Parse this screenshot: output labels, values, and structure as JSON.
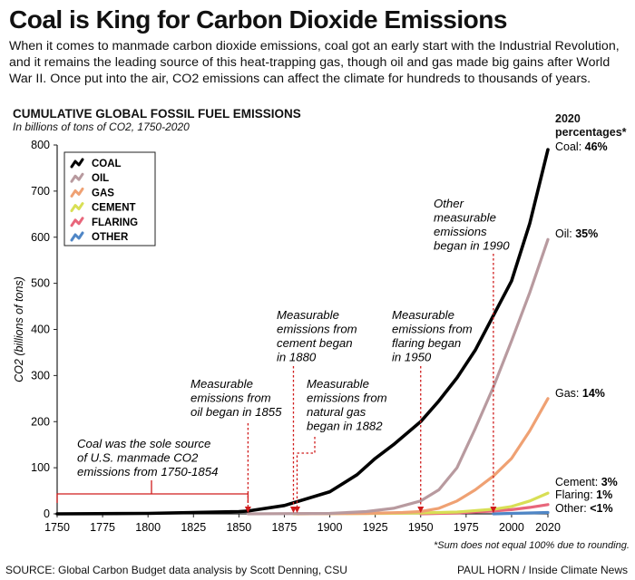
{
  "header": {
    "title": "Coal is King for Carbon Dioxide Emissions",
    "intro": "When it comes to manmade carbon dioxide emissions, coal got an early start with the Industrial Revolution, and it remains the leading source of this heat-trapping gas, though oil and gas made big gains after World War II.  Once put into the air, CO2 emissions can affect the climate for hundreds to thousands of years."
  },
  "chart_data": {
    "type": "line",
    "title": "CUMULATIVE GLOBAL FOSSIL FUEL EMISSIONS",
    "subtitle": "In billions of tons of CO2, 1750-2020",
    "ylabel": "CO2 (billions of tons)",
    "xlim": [
      1750,
      2020
    ],
    "ylim": [
      0,
      800
    ],
    "x_ticks": [
      1750,
      1775,
      1800,
      1825,
      1850,
      1875,
      1900,
      1925,
      1950,
      1975,
      2000,
      2020
    ],
    "y_ticks": [
      0,
      100,
      200,
      300,
      400,
      500,
      600,
      700,
      800
    ],
    "legend_position": "top-left",
    "series": [
      {
        "name": "COAL",
        "color": "#000000",
        "x": [
          1750,
          1800,
          1850,
          1855,
          1875,
          1900,
          1915,
          1925,
          1935,
          1950,
          1960,
          1970,
          1980,
          1990,
          2000,
          2010,
          2020
        ],
        "y": [
          0,
          1,
          5,
          6,
          18,
          48,
          85,
          120,
          150,
          200,
          245,
          295,
          355,
          430,
          505,
          630,
          790
        ]
      },
      {
        "name": "OIL",
        "color": "#b89a9f",
        "x": [
          1855,
          1900,
          1920,
          1935,
          1950,
          1960,
          1970,
          1980,
          1990,
          2000,
          2010,
          2020
        ],
        "y": [
          0,
          1,
          5,
          12,
          28,
          52,
          100,
          185,
          275,
          375,
          480,
          595
        ]
      },
      {
        "name": "GAS",
        "color": "#efa173",
        "x": [
          1882,
          1920,
          1940,
          1950,
          1960,
          1970,
          1980,
          1990,
          2000,
          2010,
          2020
        ],
        "y": [
          0,
          1,
          3,
          5,
          12,
          28,
          52,
          82,
          120,
          180,
          250
        ]
      },
      {
        "name": "CEMENT",
        "color": "#d8df55",
        "x": [
          1880,
          1930,
          1950,
          1970,
          1990,
          2000,
          2010,
          2020
        ],
        "y": [
          0,
          1,
          2,
          4,
          10,
          16,
          28,
          45
        ]
      },
      {
        "name": "FLARING",
        "color": "#e8667b",
        "x": [
          1950,
          1970,
          1990,
          2000,
          2010,
          2020
        ],
        "y": [
          0,
          2,
          6,
          9,
          14,
          20
        ]
      },
      {
        "name": "OTHER",
        "color": "#4f86c6",
        "x": [
          1990,
          2000,
          2010,
          2020
        ],
        "y": [
          0,
          1,
          2,
          3
        ]
      }
    ],
    "percentages_title": "2020 percentages*",
    "percentages": [
      {
        "label": "Coal:",
        "value": "46%",
        "y": 790
      },
      {
        "label": "Oil:",
        "value": "35%",
        "y": 595
      },
      {
        "label": "Gas:",
        "value": "14%",
        "y": 250
      },
      {
        "label": "Cement:",
        "value": "3%",
        "y": 60
      },
      {
        "label": "Flaring:",
        "value": "1%",
        "y": 30
      },
      {
        "label": "Other:",
        "value": "<1%",
        "y": 5
      }
    ],
    "annotations": [
      {
        "lines": [
          "Coal was the sole source",
          "of U.S. manmade CO2",
          "emissions from 1750-1854"
        ],
        "x_year": 1855
      },
      {
        "lines": [
          "Measurable",
          "emissions from",
          "oil began in 1855"
        ],
        "x_year": 1855
      },
      {
        "lines": [
          "Measurable",
          "emissions from",
          "cement began",
          "in 1880"
        ],
        "x_year": 1880
      },
      {
        "lines": [
          "Measurable",
          "emissions from",
          "natural gas",
          "began in 1882"
        ],
        "x_year": 1882
      },
      {
        "lines": [
          "Measurable",
          "emissions from",
          "flaring began",
          "in 1950"
        ],
        "x_year": 1950
      },
      {
        "lines": [
          "Other",
          "measurable",
          "emissions",
          "began in 1990"
        ],
        "x_year": 1990
      }
    ]
  },
  "footer": {
    "footnote": "*Sum does not equal 100% due to rounding.",
    "source": "SOURCE: Global Carbon Budget data analysis by Scott Denning, CSU",
    "credit": "PAUL HORN / Inside Climate News"
  }
}
